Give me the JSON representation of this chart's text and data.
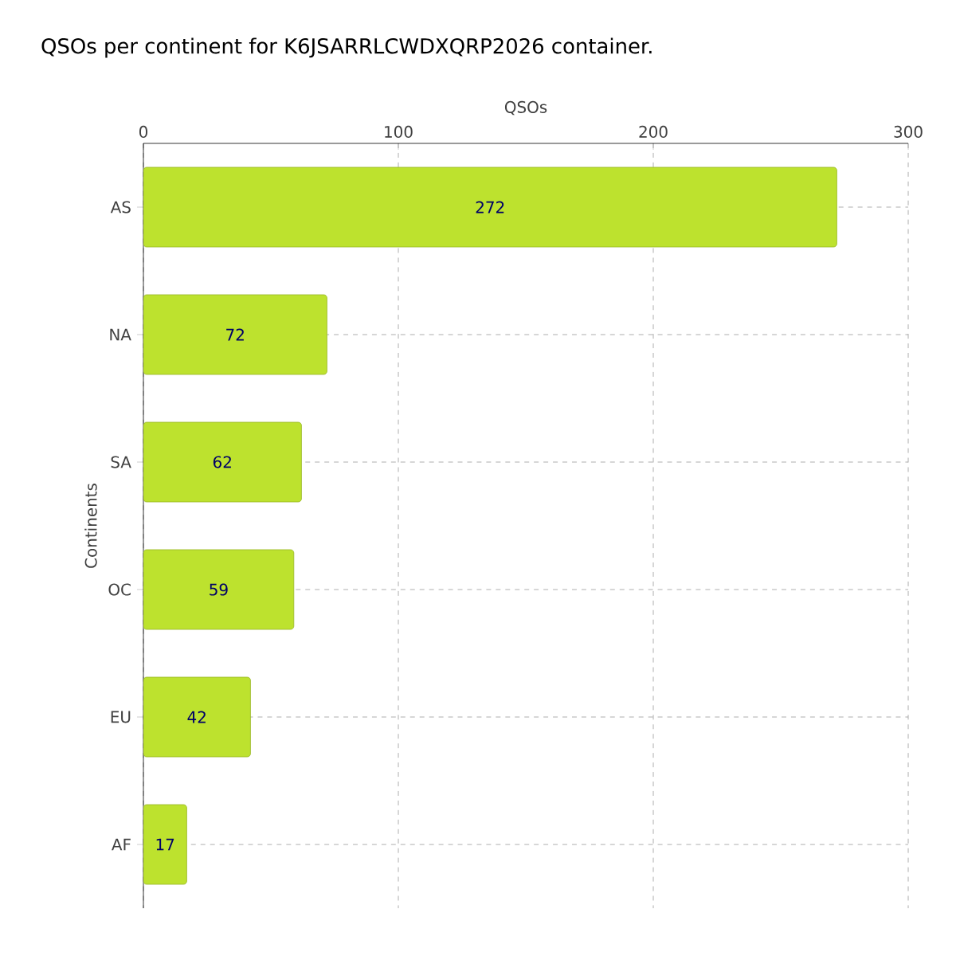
{
  "chart_data": {
    "type": "bar",
    "orientation": "horizontal",
    "title": "QSOs per continent for K6JSARRLCWDXQRP2026 container.",
    "xlabel": "QSOs",
    "ylabel": "Continents",
    "categories": [
      "AS",
      "NA",
      "SA",
      "OC",
      "EU",
      "AF"
    ],
    "values": [
      272,
      72,
      62,
      59,
      42,
      17
    ],
    "color": "#bde22e",
    "xlim": [
      0,
      300
    ],
    "xticks": [
      0,
      100,
      200,
      300
    ],
    "grid": true,
    "data_labels": true
  }
}
